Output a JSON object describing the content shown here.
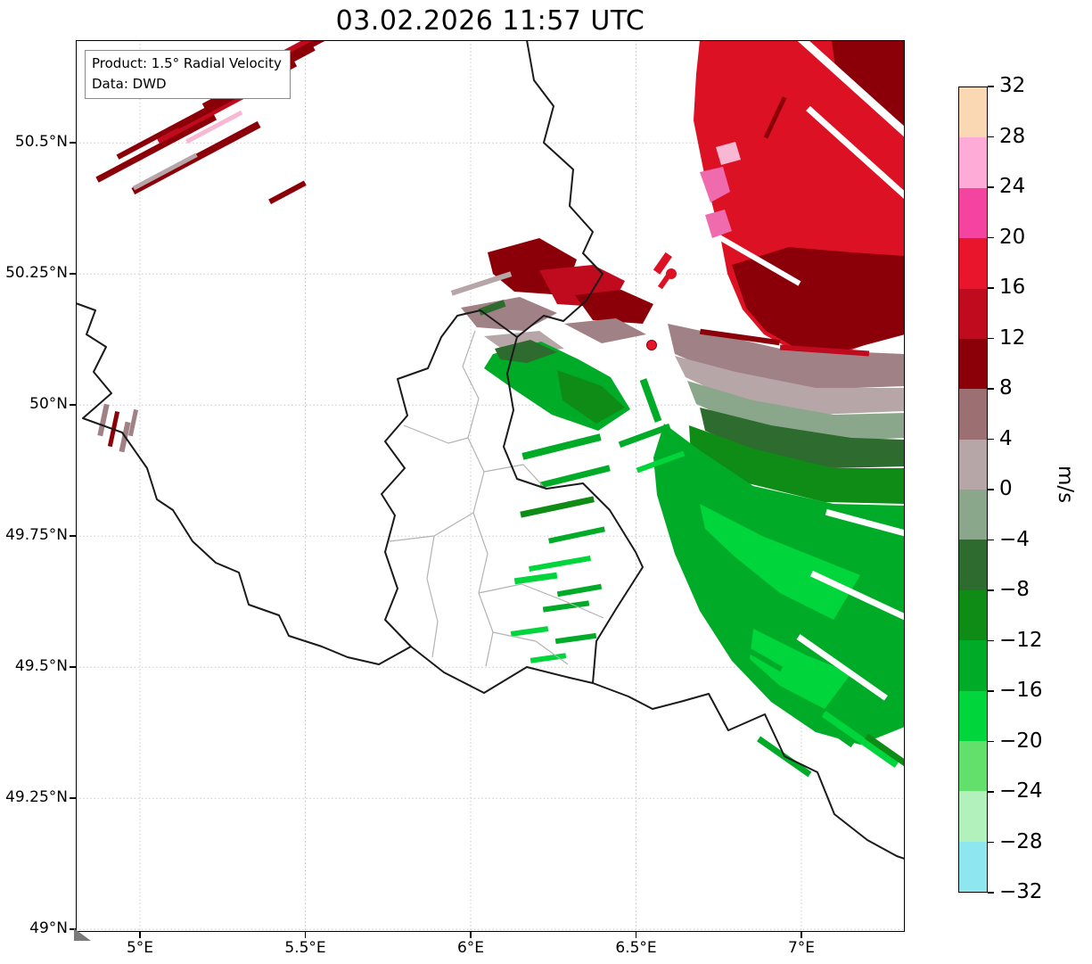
{
  "title": "03.02.2026 11:57 UTC",
  "info_box": {
    "product": "Product: 1.5° Radial Velocity",
    "data_source": "Data: DWD"
  },
  "axes": {
    "y_ticks": [
      "50.5°N",
      "50.25°N",
      "50°N",
      "49.75°N",
      "49.5°N",
      "49.25°N",
      "49°N"
    ],
    "x_ticks": [
      "5°E",
      "5.5°E",
      "6°E",
      "6.5°E",
      "7°E"
    ]
  },
  "colorbar": {
    "label": "m/s",
    "tick_labels": [
      "32",
      "28",
      "24",
      "20",
      "16",
      "12",
      "8",
      "4",
      "0",
      "−4",
      "−8",
      "−12",
      "−16",
      "−20",
      "−24",
      "−28",
      "−32"
    ],
    "segments": [
      {
        "hi": 32,
        "lo": 28,
        "color": "#fbd8b4"
      },
      {
        "hi": 28,
        "lo": 24,
        "color": "#ffabd8"
      },
      {
        "hi": 24,
        "lo": 20,
        "color": "#f4449f"
      },
      {
        "hi": 20,
        "lo": 16,
        "color": "#e8152c"
      },
      {
        "hi": 16,
        "lo": 12,
        "color": "#c00a1e"
      },
      {
        "hi": 12,
        "lo": 8,
        "color": "#8b0008"
      },
      {
        "hi": 8,
        "lo": 4,
        "color": "#9c6f72"
      },
      {
        "hi": 4,
        "lo": 0,
        "color": "#b7a6a8"
      },
      {
        "hi": 0,
        "lo": -4,
        "color": "#8ba78b"
      },
      {
        "hi": -4,
        "lo": -8,
        "color": "#2e6b2e"
      },
      {
        "hi": -8,
        "lo": -12,
        "color": "#0e8c16"
      },
      {
        "hi": -12,
        "lo": -16,
        "color": "#00ab28"
      },
      {
        "hi": -16,
        "lo": -20,
        "color": "#00d53c"
      },
      {
        "hi": -20,
        "lo": -24,
        "color": "#63e06c"
      },
      {
        "hi": -24,
        "lo": -28,
        "color": "#b2f0bc"
      },
      {
        "hi": -28,
        "lo": -32,
        "color": "#8ee6ee"
      }
    ]
  },
  "radar_site": {
    "marker_color": "#e8152c"
  }
}
